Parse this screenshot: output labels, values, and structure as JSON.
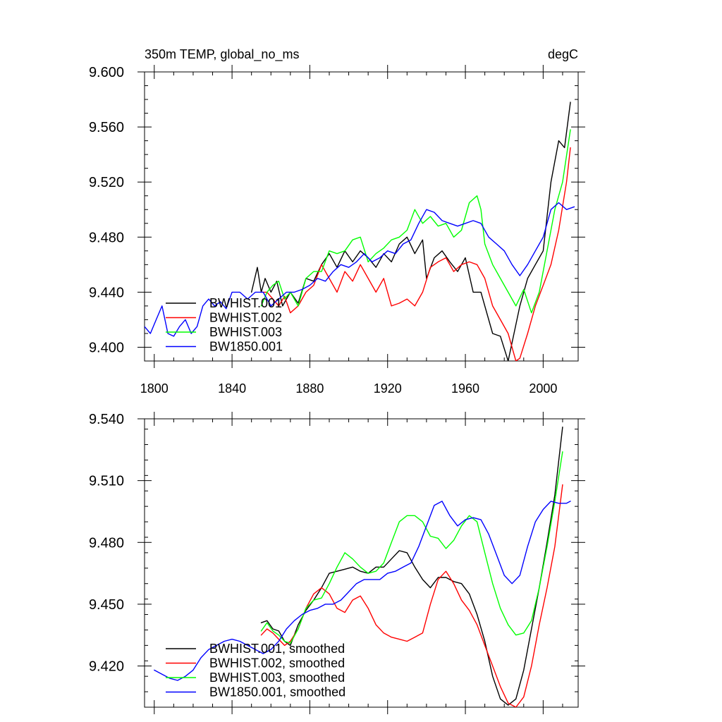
{
  "chart_data": [
    {
      "type": "line",
      "title_left": "350m TEMP, global_no_ms",
      "title_right": "degC",
      "xlim": [
        1795,
        2018
      ],
      "ylim": [
        9.39,
        9.6
      ],
      "xticks": [
        1800,
        1840,
        1880,
        1920,
        1960,
        2000
      ],
      "xtick_labels": [
        "1800",
        "1840",
        "1880",
        "1920",
        "1960",
        "2000"
      ],
      "yticks": [
        9.4,
        9.44,
        9.48,
        9.52,
        9.56,
        9.6
      ],
      "ytick_labels": [
        "9.400",
        "9.440",
        "9.480",
        "9.520",
        "9.560",
        "9.600"
      ],
      "legend_position": "bottom-left",
      "series": [
        {
          "name": "BWHIST.001",
          "color": "#000000",
          "x": [
            1850,
            1853,
            1855,
            1857,
            1860,
            1863,
            1866,
            1870,
            1874,
            1878,
            1882,
            1886,
            1890,
            1894,
            1898,
            1902,
            1906,
            1910,
            1914,
            1918,
            1922,
            1926,
            1930,
            1934,
            1938,
            1940,
            1944,
            1948,
            1952,
            1956,
            1960,
            1964,
            1968,
            1970,
            1974,
            1978,
            1982,
            1985,
            1988,
            1992,
            1996,
            2000,
            2004,
            2008,
            2011,
            2014
          ],
          "values": [
            9.44,
            9.458,
            9.44,
            9.45,
            9.44,
            9.448,
            9.43,
            9.44,
            9.432,
            9.45,
            9.448,
            9.46,
            9.468,
            9.458,
            9.47,
            9.462,
            9.47,
            9.465,
            9.458,
            9.468,
            9.462,
            9.475,
            9.48,
            9.468,
            9.478,
            9.45,
            9.465,
            9.47,
            9.462,
            9.455,
            9.465,
            9.44,
            9.44,
            9.43,
            9.41,
            9.408,
            9.39,
            9.41,
            9.43,
            9.45,
            9.46,
            9.47,
            9.52,
            9.55,
            9.545,
            9.578
          ]
        },
        {
          "name": "BWHIST.002",
          "color": "#ff0000",
          "x": [
            1855,
            1858,
            1861,
            1864,
            1867,
            1870,
            1874,
            1878,
            1882,
            1886,
            1890,
            1894,
            1898,
            1902,
            1906,
            1910,
            1914,
            1918,
            1922,
            1926,
            1930,
            1934,
            1938,
            1942,
            1946,
            1950,
            1954,
            1958,
            1962,
            1966,
            1970,
            1974,
            1978,
            1982,
            1986,
            1988,
            1992,
            1996,
            2000,
            2004,
            2008,
            2012,
            2014
          ],
          "values": [
            9.44,
            9.44,
            9.435,
            9.43,
            9.437,
            9.425,
            9.43,
            9.44,
            9.445,
            9.46,
            9.45,
            9.44,
            9.455,
            9.448,
            9.46,
            9.45,
            9.44,
            9.45,
            9.43,
            9.432,
            9.435,
            9.43,
            9.44,
            9.458,
            9.462,
            9.465,
            9.455,
            9.46,
            9.462,
            9.46,
            9.45,
            9.43,
            9.42,
            9.41,
            9.39,
            9.392,
            9.41,
            9.43,
            9.445,
            9.46,
            9.485,
            9.52,
            9.545
          ]
        },
        {
          "name": "BWHIST.003",
          "color": "#00ff00",
          "x": [
            1855,
            1858,
            1861,
            1864,
            1867,
            1870,
            1874,
            1878,
            1882,
            1886,
            1890,
            1894,
            1898,
            1902,
            1906,
            1910,
            1914,
            1918,
            1922,
            1926,
            1930,
            1934,
            1938,
            1942,
            1946,
            1950,
            1954,
            1958,
            1962,
            1966,
            1968,
            1970,
            1974,
            1978,
            1982,
            1986,
            1990,
            1994,
            1998,
            2002,
            2006,
            2010,
            2014
          ],
          "values": [
            9.43,
            9.44,
            9.445,
            9.448,
            9.435,
            9.44,
            9.43,
            9.45,
            9.455,
            9.455,
            9.47,
            9.468,
            9.47,
            9.478,
            9.48,
            9.462,
            9.468,
            9.472,
            9.478,
            9.48,
            9.485,
            9.5,
            9.49,
            9.495,
            9.488,
            9.49,
            9.48,
            9.485,
            9.505,
            9.51,
            9.5,
            9.475,
            9.46,
            9.45,
            9.44,
            9.43,
            9.442,
            9.425,
            9.44,
            9.47,
            9.5,
            9.52,
            9.558
          ]
        },
        {
          "name": "BW1850.001",
          "color": "#0000ff",
          "x": [
            1795,
            1798,
            1801,
            1804,
            1807,
            1810,
            1813,
            1816,
            1819,
            1822,
            1825,
            1828,
            1831,
            1834,
            1837,
            1840,
            1844,
            1848,
            1852,
            1856,
            1860,
            1864,
            1868,
            1872,
            1876,
            1880,
            1884,
            1888,
            1892,
            1896,
            1900,
            1904,
            1908,
            1912,
            1916,
            1920,
            1924,
            1928,
            1932,
            1936,
            1940,
            1944,
            1948,
            1952,
            1956,
            1960,
            1964,
            1968,
            1972,
            1976,
            1980,
            1984,
            1988,
            1992,
            1996,
            2000,
            2004,
            2008,
            2012,
            2016
          ],
          "values": [
            9.415,
            9.41,
            9.42,
            9.43,
            9.41,
            9.408,
            9.415,
            9.42,
            9.41,
            9.415,
            9.43,
            9.435,
            9.43,
            9.433,
            9.428,
            9.44,
            9.44,
            9.435,
            9.44,
            9.44,
            9.43,
            9.435,
            9.44,
            9.44,
            9.442,
            9.445,
            9.45,
            9.448,
            9.455,
            9.46,
            9.458,
            9.462,
            9.468,
            9.462,
            9.465,
            9.47,
            9.468,
            9.475,
            9.478,
            9.49,
            9.5,
            9.498,
            9.492,
            9.49,
            9.488,
            9.49,
            9.492,
            9.49,
            9.48,
            9.475,
            9.47,
            9.46,
            9.452,
            9.46,
            9.47,
            9.48,
            9.5,
            9.505,
            9.5,
            9.502
          ]
        }
      ]
    },
    {
      "type": "line",
      "xlim": [
        1795,
        2018
      ],
      "ylim": [
        9.4,
        9.54
      ],
      "xticks": [
        1800,
        1840,
        1880,
        1920,
        1960,
        2000
      ],
      "yticks": [
        9.42,
        9.45,
        9.48,
        9.51,
        9.54
      ],
      "ytick_labels": [
        "9.420",
        "9.450",
        "9.480",
        "9.510",
        "9.540"
      ],
      "legend_position": "bottom-left",
      "series": [
        {
          "name": "BWHIST.001, smoothed",
          "color": "#000000",
          "x": [
            1855,
            1858,
            1861,
            1864,
            1867,
            1870,
            1874,
            1878,
            1882,
            1886,
            1890,
            1894,
            1898,
            1902,
            1906,
            1910,
            1914,
            1918,
            1922,
            1926,
            1930,
            1934,
            1938,
            1942,
            1946,
            1950,
            1954,
            1958,
            1962,
            1966,
            1970,
            1974,
            1978,
            1982,
            1986,
            1990,
            1994,
            1998,
            2002,
            2006,
            2010
          ],
          "values": [
            9.441,
            9.442,
            9.438,
            9.437,
            9.432,
            9.43,
            9.44,
            9.447,
            9.452,
            9.458,
            9.465,
            9.466,
            9.467,
            9.468,
            9.466,
            9.465,
            9.468,
            9.468,
            9.472,
            9.476,
            9.475,
            9.468,
            9.462,
            9.458,
            9.463,
            9.463,
            9.461,
            9.46,
            9.455,
            9.445,
            9.432,
            9.415,
            9.404,
            9.401,
            9.404,
            9.418,
            9.438,
            9.458,
            9.48,
            9.503,
            9.536
          ]
        },
        {
          "name": "BWHIST.002, smoothed",
          "color": "#ff0000",
          "x": [
            1855,
            1858,
            1861,
            1864,
            1867,
            1870,
            1874,
            1878,
            1882,
            1886,
            1890,
            1894,
            1898,
            1902,
            1906,
            1910,
            1914,
            1918,
            1922,
            1926,
            1930,
            1934,
            1938,
            1942,
            1946,
            1950,
            1954,
            1958,
            1962,
            1966,
            1970,
            1974,
            1978,
            1982,
            1986,
            1990,
            1994,
            1998,
            2002,
            2006,
            2010
          ],
          "values": [
            9.435,
            9.438,
            9.436,
            9.433,
            9.43,
            9.432,
            9.438,
            9.448,
            9.455,
            9.458,
            9.455,
            9.448,
            9.446,
            9.452,
            9.454,
            9.448,
            9.44,
            9.436,
            9.434,
            9.433,
            9.432,
            9.434,
            9.436,
            9.45,
            9.462,
            9.466,
            9.46,
            9.452,
            9.447,
            9.44,
            9.43,
            9.42,
            9.41,
            9.402,
            9.4,
            9.405,
            9.42,
            9.44,
            9.458,
            9.478,
            9.508
          ]
        },
        {
          "name": "BWHIST.003, smoothed",
          "color": "#00ff00",
          "x": [
            1855,
            1858,
            1861,
            1864,
            1867,
            1870,
            1874,
            1878,
            1882,
            1886,
            1890,
            1894,
            1898,
            1902,
            1906,
            1910,
            1914,
            1918,
            1922,
            1926,
            1930,
            1934,
            1938,
            1942,
            1946,
            1950,
            1954,
            1958,
            1962,
            1966,
            1970,
            1974,
            1978,
            1982,
            1986,
            1990,
            1994,
            1998,
            2002,
            2006,
            2010
          ],
          "values": [
            9.437,
            9.441,
            9.437,
            9.435,
            9.432,
            9.431,
            9.438,
            9.448,
            9.452,
            9.453,
            9.46,
            9.468,
            9.475,
            9.472,
            9.468,
            9.465,
            9.466,
            9.47,
            9.48,
            9.49,
            9.493,
            9.493,
            9.49,
            9.483,
            9.482,
            9.477,
            9.481,
            9.488,
            9.493,
            9.49,
            9.475,
            9.46,
            9.448,
            9.44,
            9.435,
            9.436,
            9.442,
            9.458,
            9.478,
            9.5,
            9.524
          ]
        },
        {
          "name": "BW1850.001, smoothed",
          "color": "#0000ff",
          "x": [
            1800,
            1804,
            1808,
            1812,
            1816,
            1820,
            1824,
            1828,
            1832,
            1836,
            1840,
            1844,
            1848,
            1852,
            1856,
            1860,
            1864,
            1868,
            1872,
            1876,
            1880,
            1884,
            1888,
            1892,
            1896,
            1900,
            1904,
            1908,
            1912,
            1916,
            1920,
            1924,
            1928,
            1932,
            1936,
            1940,
            1944,
            1948,
            1952,
            1956,
            1960,
            1964,
            1968,
            1972,
            1976,
            1980,
            1984,
            1988,
            1992,
            1996,
            2000,
            2004,
            2008,
            2012,
            2014
          ],
          "values": [
            9.418,
            9.416,
            9.414,
            9.413,
            9.415,
            9.418,
            9.424,
            9.428,
            9.43,
            9.432,
            9.433,
            9.432,
            9.43,
            9.428,
            9.426,
            9.428,
            9.432,
            9.438,
            9.442,
            9.445,
            9.447,
            9.448,
            9.45,
            9.45,
            9.452,
            9.456,
            9.46,
            9.462,
            9.462,
            9.462,
            9.465,
            9.466,
            9.468,
            9.47,
            9.478,
            9.488,
            9.498,
            9.5,
            9.493,
            9.488,
            9.491,
            9.492,
            9.491,
            9.484,
            9.474,
            9.464,
            9.46,
            9.464,
            9.478,
            9.49,
            9.496,
            9.5,
            9.499,
            9.499,
            9.5
          ]
        }
      ]
    }
  ]
}
